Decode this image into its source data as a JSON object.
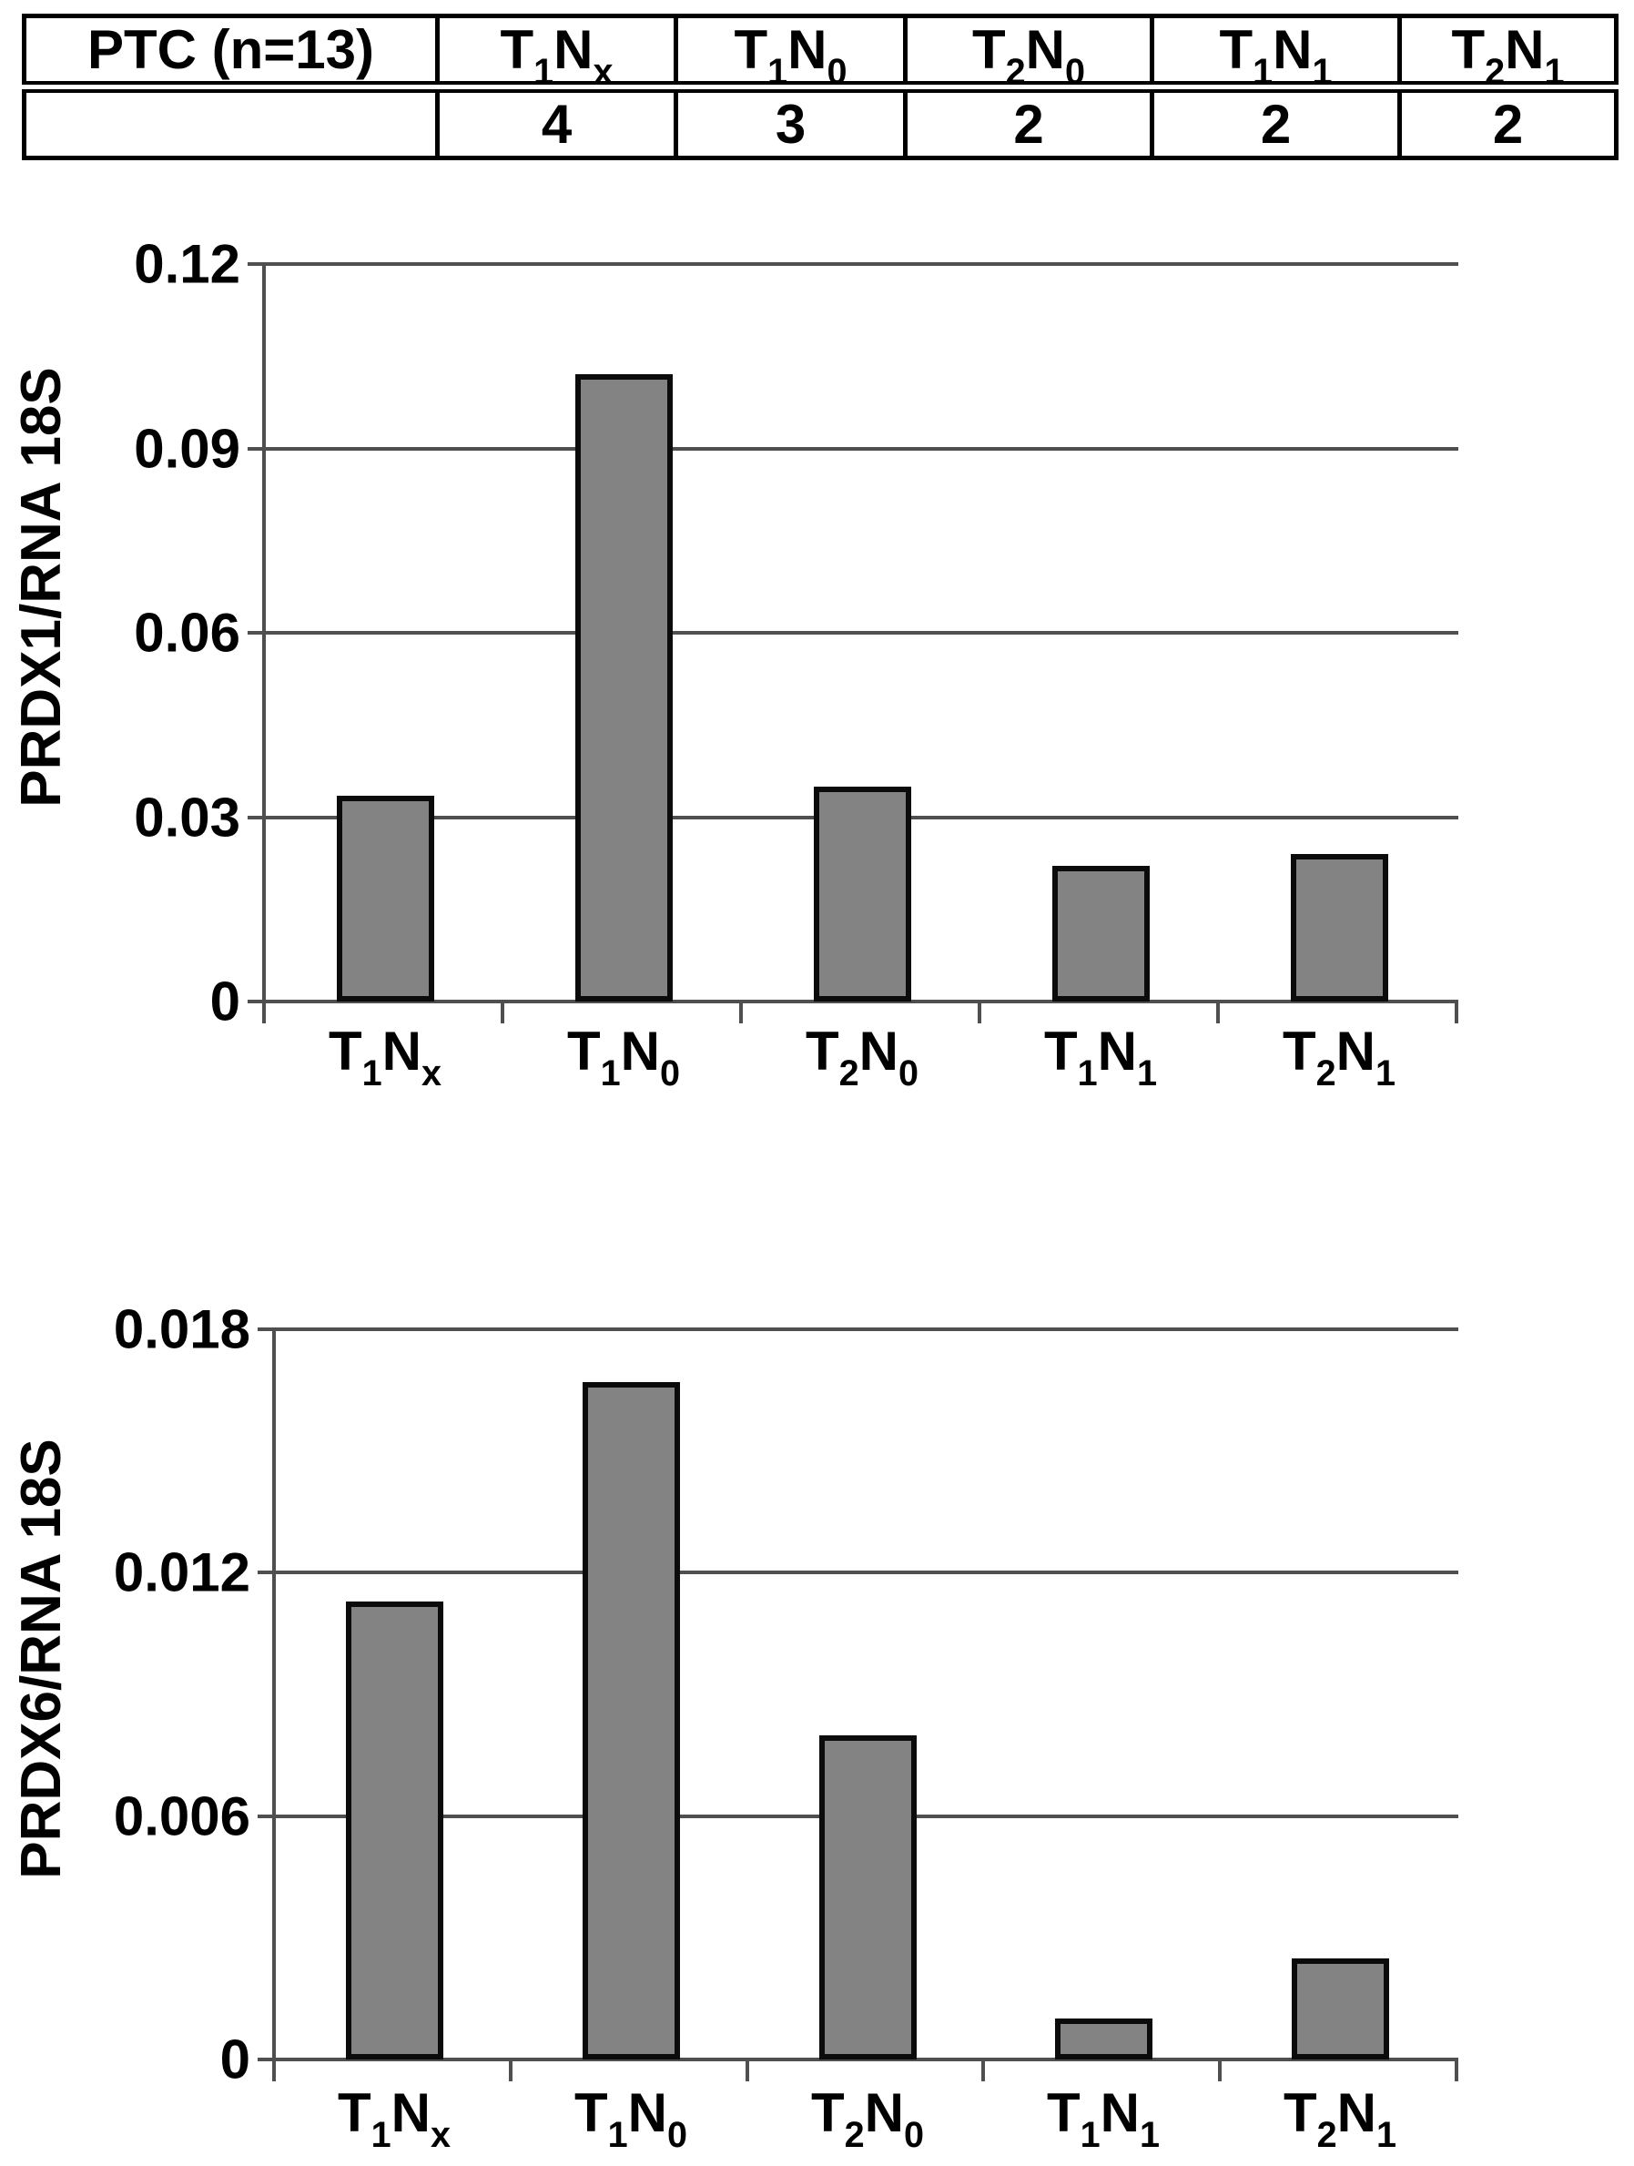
{
  "figure": {
    "background": "#ffffff",
    "text_color": "#000000"
  },
  "table": {
    "header_row": [
      "PTC (n=13)",
      "T_1N_x",
      "T_1N_0",
      "T_2N_0",
      "T_1N_1",
      "T_2N_1"
    ],
    "value_row": [
      "",
      "4",
      "3",
      "2",
      "2",
      "2"
    ]
  },
  "chart_data": [
    {
      "type": "bar",
      "title": "",
      "xlabel": "",
      "ylabel": "PRDX1/RNA 18S",
      "categories": [
        "T_1N_x",
        "T_1N_0",
        "T_2N_0",
        "T_1N_1",
        "T_2N_1"
      ],
      "values": [
        0.0335,
        0.102,
        0.035,
        0.022,
        0.024
      ],
      "ylim": [
        0,
        0.12
      ],
      "yticks": [
        0,
        0.03,
        0.06,
        0.09,
        0.12
      ],
      "ytick_labels": [
        "0",
        "0.03",
        "0.06",
        "0.09",
        "0.12"
      ],
      "grid": true,
      "legend": false,
      "bar_color": "#838383",
      "bar_border_color": "#0b0b0b",
      "axis_color": "#4f4f4f"
    },
    {
      "type": "bar",
      "title": "",
      "xlabel": "",
      "ylabel": "PRDX6/RNA 18S",
      "categories": [
        "T_1N_x",
        "T_1N_0",
        "T_2N_0",
        "T_1N_1",
        "T_2N_1"
      ],
      "values": [
        0.0113,
        0.0167,
        0.008,
        0.001,
        0.0025
      ],
      "ylim": [
        0,
        0.018
      ],
      "yticks": [
        0,
        0.006,
        0.012,
        0.018
      ],
      "ytick_labels": [
        "0",
        "0.006",
        "0.012",
        "0.018"
      ],
      "grid": true,
      "legend": false,
      "bar_color": "#838383",
      "bar_border_color": "#0b0b0b",
      "axis_color": "#4f4f4f"
    }
  ]
}
